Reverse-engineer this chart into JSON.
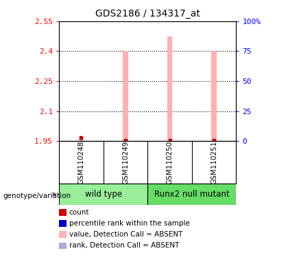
{
  "title": "GDS2186 / 134317_at",
  "samples": [
    "GSM110248",
    "GSM110249",
    "GSM110250",
    "GSM110251"
  ],
  "group_labels": [
    "wild type",
    "Runx2 null mutant"
  ],
  "ylim_left": [
    1.95,
    2.55
  ],
  "ylim_right": [
    0,
    100
  ],
  "yticks_left": [
    1.95,
    2.1,
    2.25,
    2.4,
    2.55
  ],
  "yticks_right": [
    0,
    25,
    50,
    75,
    100
  ],
  "ytick_labels_left": [
    "1.95",
    "2.1",
    "2.25",
    "2.4",
    "2.55"
  ],
  "ytick_labels_right": [
    "0",
    "25",
    "50",
    "75",
    "100%"
  ],
  "pink_values": [
    1.968,
    2.4,
    2.475,
    2.4
  ],
  "blue_values": [
    1.957,
    1.957,
    1.958,
    1.957
  ],
  "red_values": [
    1.968,
    1.955,
    1.955,
    1.955
  ],
  "bar_width": 0.12,
  "pink_color": "#FFB0B0",
  "blue_color": "#9999CC",
  "red_color": "#CC0000",
  "dark_blue_color": "#0000CC",
  "bg_color": "#FFFFFF",
  "plot_bg": "#FFFFFF",
  "sample_box_color": "#CCCCCC",
  "group_box_color_wt": "#99EE99",
  "group_box_color_mut": "#66DD66",
  "genotype_label": "genotype/variation",
  "legend_items": [
    {
      "label": "count",
      "color": "#CC0000"
    },
    {
      "label": "percentile rank within the sample",
      "color": "#0000CC"
    },
    {
      "label": "value, Detection Call = ABSENT",
      "color": "#FFB0B0"
    },
    {
      "label": "rank, Detection Call = ABSENT",
      "color": "#AAAADD"
    }
  ]
}
